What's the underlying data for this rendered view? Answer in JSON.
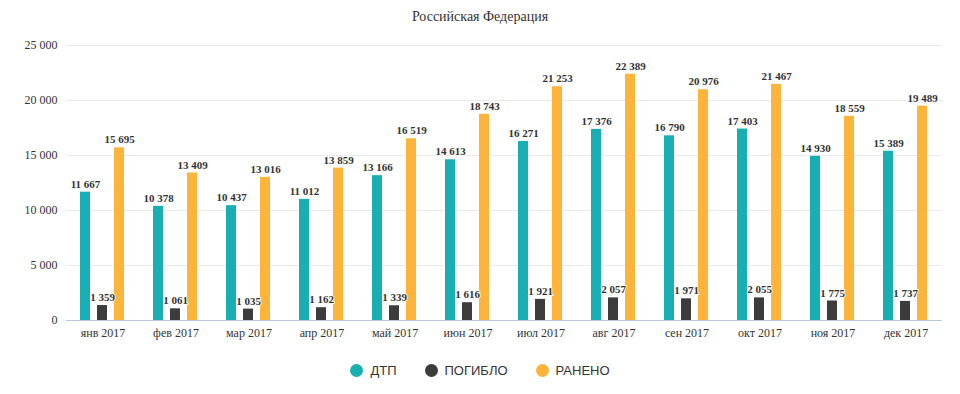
{
  "chart_data": {
    "type": "bar",
    "title": "Российская Федерация",
    "categories": [
      "янв 2017",
      "фев 2017",
      "мар 2017",
      "апр 2017",
      "май 2017",
      "июн 2017",
      "июл 2017",
      "авг 2017",
      "сен 2017",
      "окт 2017",
      "ноя 2017",
      "дек 2017"
    ],
    "series": [
      {
        "name": "ДТП",
        "color": "#19aeb2",
        "values": [
          11667,
          10378,
          10437,
          11012,
          13166,
          14613,
          16271,
          17376,
          16790,
          17403,
          14930,
          15389
        ],
        "value_labels": [
          "11 667",
          "10 378",
          "10 437",
          "11 012",
          "13 166",
          "14 613",
          "16 271",
          "17 376",
          "16 790",
          "17 403",
          "14 930",
          "15 389"
        ]
      },
      {
        "name": "ПОГИБЛО",
        "color": "#3c3c3c",
        "values": [
          1359,
          1061,
          1035,
          1162,
          1339,
          1616,
          1921,
          2057,
          1971,
          2055,
          1775,
          1737
        ],
        "value_labels": [
          "1 359",
          "1 061",
          "1 035",
          "1 162",
          "1 339",
          "1 616",
          "1 921",
          "2 057",
          "1 971",
          "2 055",
          "1 775",
          "1 737"
        ]
      },
      {
        "name": "РАНЕНО",
        "color": "#fcb43a",
        "values": [
          15695,
          13409,
          13016,
          13859,
          16519,
          18743,
          21253,
          22389,
          20976,
          21467,
          18559,
          19489
        ],
        "value_labels": [
          "15 695",
          "13 409",
          "13 016",
          "13 859",
          "16 519",
          "18 743",
          "21 253",
          "22 389",
          "20 976",
          "21 467",
          "18 559",
          "19 489"
        ]
      }
    ],
    "ylim": [
      0,
      25000
    ],
    "yticks": [
      0,
      {
        "value": 5000,
        "label": "5 000"
      },
      {
        "value": 10000,
        "label": "10 000"
      },
      {
        "value": 15000,
        "label": "15 000"
      },
      {
        "value": 20000,
        "label": "20 000"
      },
      {
        "value": 25000,
        "label": "25 000"
      }
    ],
    "grid": true,
    "legend": "bottom",
    "data_labels": true
  }
}
